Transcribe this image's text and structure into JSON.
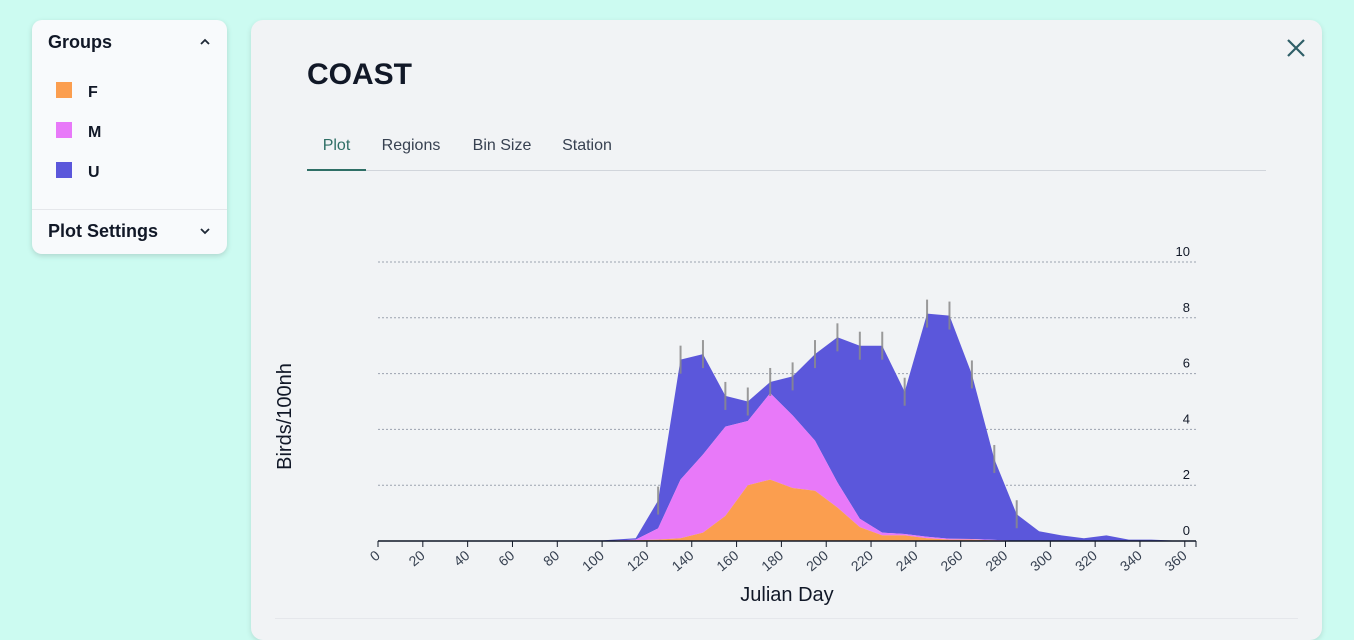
{
  "groups_panel": {
    "title": "Groups",
    "items": [
      {
        "label": "F",
        "color": "#fb9e4f"
      },
      {
        "label": "M",
        "color": "#e879f9"
      },
      {
        "label": "U",
        "color": "#5b57db"
      }
    ],
    "settings_title": "Plot Settings"
  },
  "main": {
    "title": "COAST",
    "tabs": [
      "Plot",
      "Regions",
      "Bin Size",
      "Station"
    ],
    "active_tab": "Plot"
  },
  "chart_data": {
    "type": "area",
    "xlabel": "Julian Day",
    "ylabel": "Birds/100nh",
    "xlim": [
      0,
      365
    ],
    "ylim": [
      0,
      10
    ],
    "x_ticks": [
      0,
      20,
      40,
      60,
      80,
      100,
      120,
      140,
      160,
      180,
      200,
      220,
      240,
      260,
      280,
      300,
      320,
      340,
      360
    ],
    "y_ticks": [
      0,
      2,
      4,
      6,
      8,
      10
    ],
    "grid": true,
    "stacked": true,
    "x": [
      0,
      100,
      115,
      125,
      135,
      145,
      155,
      165,
      175,
      185,
      195,
      205,
      215,
      225,
      235,
      245,
      255,
      265,
      275,
      285,
      295,
      305,
      315,
      325,
      335,
      345,
      360
    ],
    "series": [
      {
        "name": "F",
        "color": "#fb9e4f",
        "values": [
          0,
          0,
          0.03,
          0.05,
          0.1,
          0.3,
          0.9,
          2.0,
          2.2,
          1.9,
          1.8,
          1.2,
          0.5,
          0.2,
          0.2,
          0.1,
          0.05,
          0.05,
          0.02,
          0,
          0,
          0,
          0,
          0,
          0,
          0,
          0
        ]
      },
      {
        "name": "M",
        "color": "#e879f9",
        "values": [
          0,
          0,
          0.02,
          0.4,
          2.1,
          2.8,
          3.2,
          2.3,
          3.1,
          2.6,
          1.8,
          0.9,
          0.3,
          0.1,
          0.05,
          0.05,
          0.03,
          0.02,
          0.02,
          0.01,
          0,
          0,
          0,
          0,
          0,
          0,
          0
        ]
      },
      {
        "name": "U",
        "color": "#5b57db",
        "values": [
          0,
          0.02,
          0.05,
          1.0,
          4.3,
          3.6,
          1.1,
          0.7,
          0.4,
          1.4,
          3.1,
          5.2,
          6.2,
          6.7,
          5.1,
          8.0,
          8.0,
          5.9,
          2.9,
          0.95,
          0.35,
          0.2,
          0.1,
          0.2,
          0.05,
          0.05,
          0
        ]
      }
    ]
  }
}
